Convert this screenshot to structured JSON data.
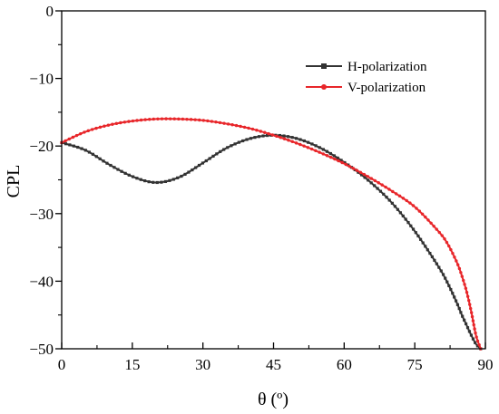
{
  "chart_data": {
    "type": "line",
    "xlabel": "θ (º)",
    "ylabel": "CPL",
    "xlim": [
      0,
      90
    ],
    "ylim": [
      -50,
      0
    ],
    "xticks": [
      0,
      15,
      30,
      45,
      60,
      75,
      90
    ],
    "xtick_labels": [
      "0",
      "15",
      "30",
      "45",
      "60",
      "75",
      "90"
    ],
    "yticks": [
      0,
      -10,
      -20,
      -30,
      -40,
      -50
    ],
    "ytick_labels": [
      "0",
      "−10",
      "−20",
      "−30",
      "−40",
      "−50"
    ],
    "grid": false,
    "legend_position": "top-right",
    "series": [
      {
        "name": "H-polarization",
        "color": "#333333",
        "marker": "square",
        "x": [
          0,
          5,
          10,
          15,
          20,
          25,
          30,
          35,
          40,
          45,
          50,
          55,
          60,
          65,
          70,
          75,
          80,
          82,
          84,
          85,
          86,
          87,
          88,
          89
        ],
        "y": [
          -19.5,
          -20.6,
          -22.7,
          -24.5,
          -25.4,
          -24.6,
          -22.5,
          -20.3,
          -18.9,
          -18.4,
          -18.9,
          -20.3,
          -22.4,
          -25.0,
          -28.3,
          -32.6,
          -37.8,
          -40.3,
          -43.3,
          -45.0,
          -46.5,
          -48.0,
          -49.3,
          -50.0
        ]
      },
      {
        "name": "V-polarization",
        "color": "#e8262a",
        "marker": "circle",
        "x": [
          0,
          5,
          10,
          15,
          20,
          25,
          30,
          35,
          40,
          45,
          50,
          55,
          60,
          65,
          70,
          75,
          80,
          82,
          84,
          85,
          86,
          87,
          88,
          89
        ],
        "y": [
          -19.5,
          -17.9,
          -16.9,
          -16.3,
          -16.0,
          -16.0,
          -16.2,
          -16.7,
          -17.4,
          -18.4,
          -19.6,
          -21.0,
          -22.6,
          -24.5,
          -26.6,
          -29.0,
          -32.6,
          -34.5,
          -37.3,
          -39.2,
          -41.5,
          -44.5,
          -48.0,
          -50.0
        ]
      }
    ]
  }
}
